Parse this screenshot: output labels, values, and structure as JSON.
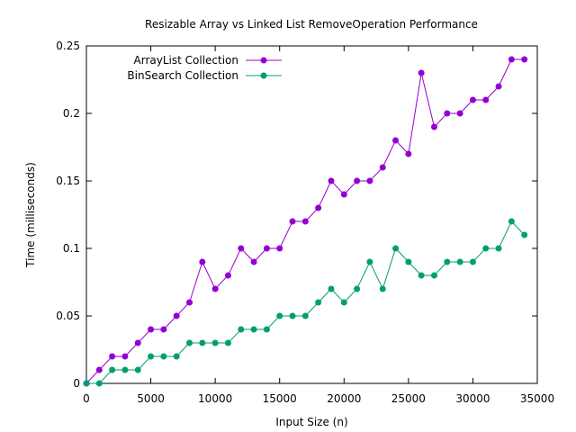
{
  "chart_data": {
    "type": "line",
    "title": "Resizable Array vs Linked List RemoveOperation Performance",
    "xlabel": "Input Size (n)",
    "ylabel": "Time (milliseconds)",
    "xlim": [
      0,
      35000
    ],
    "ylim": [
      0,
      0.25
    ],
    "x_ticks": [
      0,
      5000,
      10000,
      15000,
      20000,
      25000,
      30000,
      35000
    ],
    "x_tick_labels": [
      "0",
      "5000",
      "10000",
      "15000",
      "20000",
      "25000",
      "30000",
      "35000"
    ],
    "y_ticks": [
      0,
      0.05,
      0.1,
      0.15,
      0.2,
      0.25
    ],
    "y_tick_labels": [
      "0",
      "0.05",
      "0.1",
      "0.15",
      "0.2",
      "0.25"
    ],
    "grid": false,
    "legend_position": "top-left",
    "x": [
      0,
      1000,
      2000,
      3000,
      4000,
      5000,
      6000,
      7000,
      8000,
      9000,
      10000,
      11000,
      12000,
      13000,
      14000,
      15000,
      16000,
      17000,
      18000,
      19000,
      20000,
      21000,
      22000,
      23000,
      24000,
      25000,
      26000,
      27000,
      28000,
      29000,
      30000,
      31000,
      32000,
      33000,
      34000
    ],
    "series": [
      {
        "name": "ArrayList Collection",
        "color": "#9400d3",
        "values": [
          0,
          0.01,
          0.02,
          0.02,
          0.03,
          0.04,
          0.04,
          0.05,
          0.06,
          0.09,
          0.07,
          0.08,
          0.1,
          0.09,
          0.1,
          0.1,
          0.12,
          0.12,
          0.13,
          0.15,
          0.14,
          0.15,
          0.15,
          0.16,
          0.18,
          0.17,
          0.23,
          0.19,
          0.2,
          0.2,
          0.21,
          0.21,
          0.22,
          0.24,
          0.24
        ]
      },
      {
        "name": "BinSearch Collection",
        "color": "#009e73",
        "values": [
          0,
          0,
          0.01,
          0.01,
          0.01,
          0.02,
          0.02,
          0.02,
          0.03,
          0.03,
          0.03,
          0.03,
          0.04,
          0.04,
          0.04,
          0.05,
          0.05,
          0.05,
          0.06,
          0.07,
          0.06,
          0.07,
          0.09,
          0.07,
          0.1,
          0.09,
          0.08,
          0.08,
          0.09,
          0.09,
          0.09,
          0.1,
          0.1,
          0.12,
          0.11
        ]
      }
    ]
  }
}
